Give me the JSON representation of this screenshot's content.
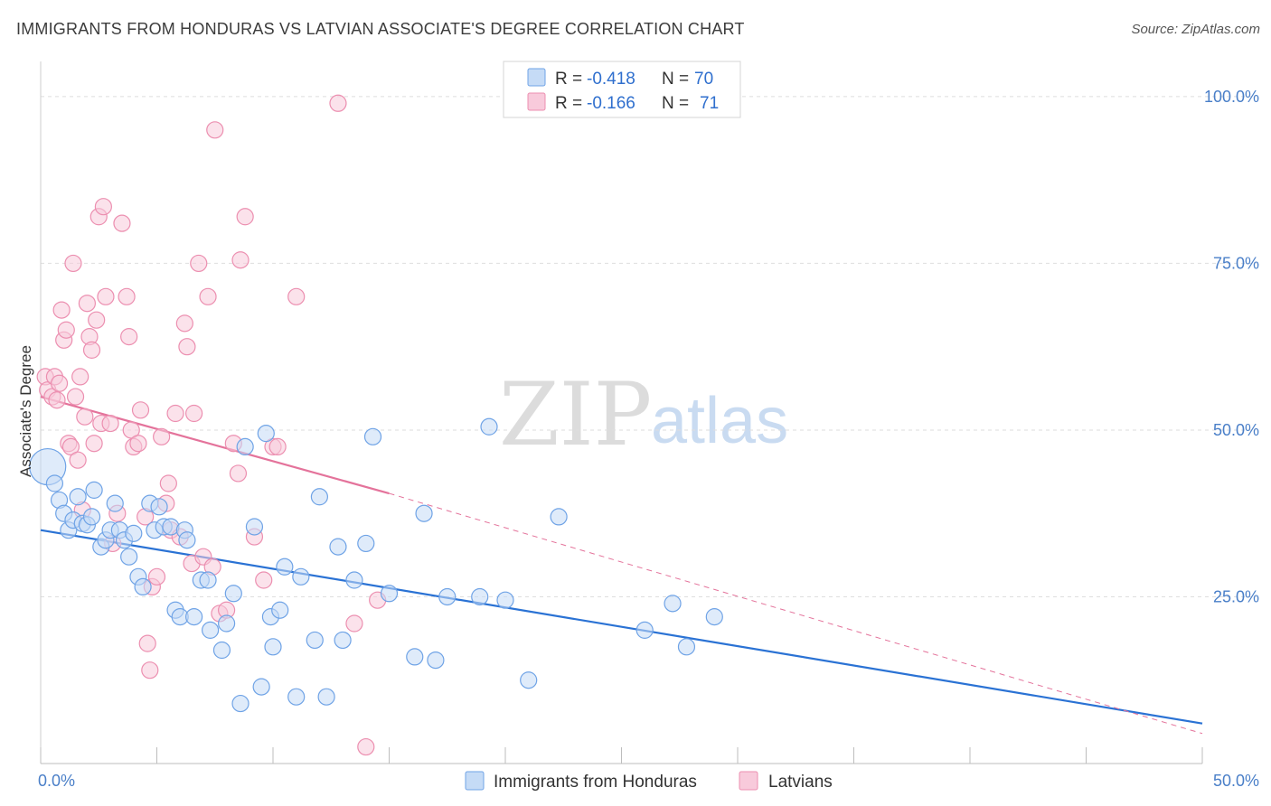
{
  "title": "IMMIGRANTS FROM HONDURAS VS LATVIAN ASSOCIATE'S DEGREE CORRELATION CHART",
  "source": "Source: ZipAtlas.com",
  "watermark": {
    "zip": "ZIP",
    "atlas": "atlas"
  },
  "colors": {
    "blue": "#6fa3e6",
    "blue_fill": "#c5dbf6",
    "blue_line": "#2a72d4",
    "pink": "#ec8fb0",
    "pink_fill": "#f8cadb",
    "pink_line": "#e4739b",
    "tick_text": "#4a7fc8"
  },
  "legend": {
    "rows": [
      {
        "r_label": "R = ",
        "r_value": "-0.418",
        "n_label": "N = ",
        "n_value": "70"
      },
      {
        "r_label": "R = ",
        "r_value": "-0.166",
        "n_label": "N = ",
        "n_value": "71"
      }
    ]
  },
  "chart_data": {
    "type": "scatter",
    "ylabel": "Associate's Degree",
    "xlim": [
      0,
      50
    ],
    "ylim": [
      0,
      105
    ],
    "x_tick_labels": [
      "0.0%",
      "50.0%"
    ],
    "y_ticks": [
      25,
      50,
      75,
      100
    ],
    "y_tick_labels": [
      "25.0%",
      "50.0%",
      "75.0%",
      "100.0%"
    ],
    "grid": true,
    "legend_position": "top-center",
    "series": [
      {
        "name": "Immigrants from Honduras",
        "color": "#6fa3e6",
        "points": [
          [
            0.3,
            44.5
          ],
          [
            0.6,
            42
          ],
          [
            0.8,
            39.5
          ],
          [
            1.0,
            37.5
          ],
          [
            1.2,
            35
          ],
          [
            1.4,
            36.5
          ],
          [
            1.6,
            40
          ],
          [
            1.8,
            36
          ],
          [
            2.0,
            35.8
          ],
          [
            2.2,
            37
          ],
          [
            2.3,
            41
          ],
          [
            2.6,
            32.5
          ],
          [
            2.8,
            33.5
          ],
          [
            3.0,
            35
          ],
          [
            3.2,
            39
          ],
          [
            3.4,
            35
          ],
          [
            3.6,
            33.5
          ],
          [
            3.8,
            31
          ],
          [
            4.0,
            34.5
          ],
          [
            4.2,
            28
          ],
          [
            4.4,
            26.5
          ],
          [
            4.7,
            39
          ],
          [
            4.9,
            35
          ],
          [
            5.1,
            38.5
          ],
          [
            5.3,
            35.5
          ],
          [
            5.6,
            35.5
          ],
          [
            5.8,
            23
          ],
          [
            6.0,
            22
          ],
          [
            6.2,
            35
          ],
          [
            6.3,
            33.5
          ],
          [
            6.6,
            22
          ],
          [
            6.9,
            27.5
          ],
          [
            7.2,
            27.5
          ],
          [
            7.3,
            20
          ],
          [
            7.8,
            17
          ],
          [
            8.0,
            21
          ],
          [
            8.3,
            25.5
          ],
          [
            8.6,
            9
          ],
          [
            8.8,
            47.5
          ],
          [
            9.2,
            35.5
          ],
          [
            9.5,
            11.5
          ],
          [
            9.7,
            49.5
          ],
          [
            9.9,
            22
          ],
          [
            10.0,
            17.5
          ],
          [
            10.3,
            23
          ],
          [
            10.5,
            29.5
          ],
          [
            11.0,
            10
          ],
          [
            11.2,
            28
          ],
          [
            11.8,
            18.5
          ],
          [
            12.0,
            40
          ],
          [
            12.3,
            10
          ],
          [
            12.8,
            32.5
          ],
          [
            13.0,
            18.5
          ],
          [
            13.5,
            27.5
          ],
          [
            14.0,
            33
          ],
          [
            14.3,
            49
          ],
          [
            15.0,
            25.5
          ],
          [
            16.1,
            16
          ],
          [
            16.5,
            37.5
          ],
          [
            17.0,
            15.5
          ],
          [
            17.5,
            25
          ],
          [
            18.9,
            25
          ],
          [
            19.3,
            50.5
          ],
          [
            20.0,
            24.5
          ],
          [
            21.0,
            12.5
          ],
          [
            22.3,
            37
          ],
          [
            26.0,
            20
          ],
          [
            27.2,
            24
          ],
          [
            27.8,
            17.5
          ],
          [
            29.0,
            22
          ]
        ]
      },
      {
        "name": "Latvians",
        "color": "#ec8fb0",
        "points": [
          [
            0.2,
            58
          ],
          [
            0.3,
            56
          ],
          [
            0.5,
            55
          ],
          [
            0.6,
            58
          ],
          [
            0.7,
            54.5
          ],
          [
            0.8,
            57
          ],
          [
            0.9,
            68
          ],
          [
            1.0,
            63.5
          ],
          [
            1.1,
            65
          ],
          [
            1.2,
            48
          ],
          [
            1.3,
            47.5
          ],
          [
            1.4,
            75
          ],
          [
            1.5,
            55
          ],
          [
            1.6,
            45.5
          ],
          [
            1.7,
            58
          ],
          [
            1.8,
            38
          ],
          [
            1.9,
            52
          ],
          [
            2.0,
            69
          ],
          [
            2.1,
            64
          ],
          [
            2.2,
            62
          ],
          [
            2.3,
            48
          ],
          [
            2.4,
            66.5
          ],
          [
            2.5,
            82
          ],
          [
            2.6,
            51
          ],
          [
            2.7,
            83.5
          ],
          [
            2.8,
            70
          ],
          [
            3.0,
            51
          ],
          [
            3.1,
            33
          ],
          [
            3.3,
            37.5
          ],
          [
            3.5,
            81
          ],
          [
            3.7,
            70
          ],
          [
            3.8,
            64
          ],
          [
            3.9,
            50
          ],
          [
            4.0,
            47.5
          ],
          [
            4.2,
            48
          ],
          [
            4.3,
            53
          ],
          [
            4.5,
            37
          ],
          [
            4.6,
            18
          ],
          [
            4.7,
            14
          ],
          [
            4.8,
            26.5
          ],
          [
            5.0,
            28
          ],
          [
            5.2,
            49
          ],
          [
            5.4,
            39
          ],
          [
            5.5,
            42
          ],
          [
            5.6,
            35
          ],
          [
            5.8,
            52.5
          ],
          [
            6.0,
            34
          ],
          [
            6.2,
            66
          ],
          [
            6.3,
            62.5
          ],
          [
            6.5,
            30
          ],
          [
            6.6,
            52.5
          ],
          [
            6.8,
            75
          ],
          [
            7.0,
            31
          ],
          [
            7.2,
            70
          ],
          [
            7.4,
            29.5
          ],
          [
            7.5,
            95
          ],
          [
            7.7,
            22.5
          ],
          [
            8.0,
            23
          ],
          [
            8.3,
            48
          ],
          [
            8.5,
            43.5
          ],
          [
            8.6,
            75.5
          ],
          [
            9.2,
            34
          ],
          [
            9.6,
            27.5
          ],
          [
            10.0,
            47.5
          ],
          [
            10.2,
            47.5
          ],
          [
            11.0,
            70
          ],
          [
            12.8,
            99
          ],
          [
            13.5,
            21
          ],
          [
            14.0,
            2.5
          ],
          [
            14.5,
            24.5
          ],
          [
            8.8,
            82
          ]
        ]
      }
    ],
    "trend_lines": [
      {
        "series": "Immigrants from Honduras",
        "x0": 0,
        "y0": 35,
        "x1": 50,
        "y1": 6
      },
      {
        "series": "Latvians",
        "x0": 0,
        "y0": 55,
        "x1": 15,
        "y1": 40.5,
        "dashed_to_x": 50,
        "dashed_to_y": 4.5
      }
    ]
  }
}
